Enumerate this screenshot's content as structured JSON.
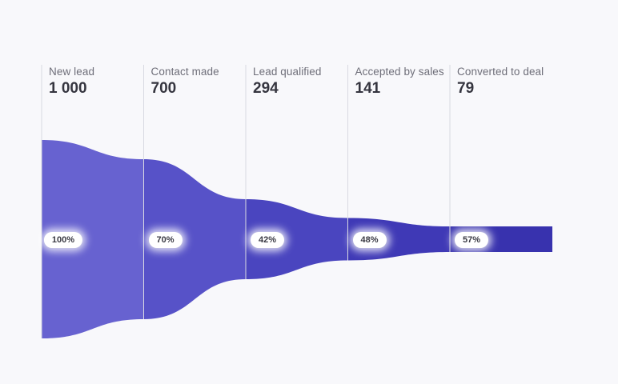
{
  "chart_data": {
    "type": "funnel",
    "title": "",
    "orientation": "horizontal",
    "stages": [
      {
        "label": "New lead",
        "value": 1000,
        "value_display": "1 000",
        "badge": "100%",
        "color": "#6762d0"
      },
      {
        "label": "Contact made",
        "value": 700,
        "value_display": "700",
        "badge": "70%",
        "color": "#5752c8"
      },
      {
        "label": "Lead qualified",
        "value": 294,
        "value_display": "294",
        "badge": "42%",
        "color": "#4a45bf"
      },
      {
        "label": "Accepted by sales",
        "value": 141,
        "value_display": "141",
        "badge": "48%",
        "color": "#3f39b6"
      },
      {
        "label": "Converted to deal",
        "value": 79,
        "value_display": "79",
        "badge": "57%",
        "color": "#3832ae"
      }
    ],
    "legend": "none",
    "grid": "vertical divider line at each stage",
    "badge_position": "vertical center of funnel"
  },
  "colors": {
    "background": "#f8f8fb",
    "divider_line": "#d9dae2",
    "stage_label_text": "#6e6e79",
    "stage_value_text": "#35353f",
    "badge_background": "#ffffff",
    "badge_text": "#3a3a44"
  }
}
